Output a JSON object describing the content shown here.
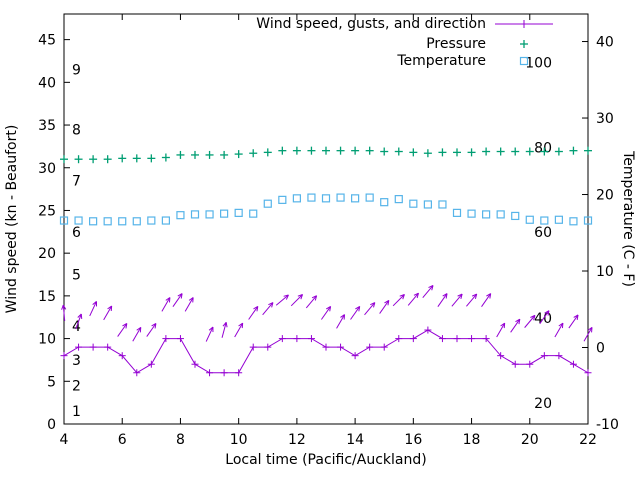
{
  "page": {
    "background": "#ffffff"
  },
  "chart_data": {
    "type": "line",
    "title": "",
    "xlabel": "Local time (Pacific/Auckland)",
    "ylabel_left": "Wind speed (kn - Beaufort)",
    "ylabel_right": "Temperature (C - F)",
    "grid": false,
    "xlim": [
      4,
      22
    ],
    "ylim_left": [
      0,
      48
    ],
    "ylim_right": [
      -10,
      43.6
    ],
    "x_ticks": [
      4,
      6,
      8,
      10,
      12,
      14,
      16,
      18,
      20,
      22
    ],
    "y_ticks_left": [
      0,
      5,
      10,
      15,
      20,
      25,
      30,
      35,
      40,
      45
    ],
    "y_ticks_right": [
      -10,
      0,
      10,
      20,
      30,
      40
    ],
    "beaufort_scale_labels": [
      {
        "label": "1",
        "kn": 1.5
      },
      {
        "label": "2",
        "kn": 4.5
      },
      {
        "label": "3",
        "kn": 7.5
      },
      {
        "label": "4",
        "kn": 11.5
      },
      {
        "label": "5",
        "kn": 17.5
      },
      {
        "label": "6",
        "kn": 22.5
      },
      {
        "label": "7",
        "kn": 28.5
      },
      {
        "label": "8",
        "kn": 34.5
      },
      {
        "label": "9",
        "kn": 41.5
      }
    ],
    "fahrenheit_scale_labels": [
      {
        "label": "20",
        "c": -6.7
      },
      {
        "label": "40",
        "c": 4.4
      },
      {
        "label": "60",
        "c": 15.6
      },
      {
        "label": "80",
        "c": 26.7
      },
      {
        "label": "100",
        "c": 37.8
      }
    ],
    "legend": {
      "position": "top-right",
      "entries": [
        {
          "label": "Wind speed, gusts, and direction",
          "marker": "line-plus",
          "color": "#9400d3"
        },
        {
          "label": "Pressure",
          "marker": "plus",
          "color": "#009e73"
        },
        {
          "label": "Temperature",
          "marker": "open-square",
          "color": "#56b4e9"
        }
      ]
    },
    "x": [
      4,
      4.5,
      5,
      5.5,
      6,
      6.5,
      7,
      7.5,
      8,
      8.5,
      9,
      9.5,
      10,
      10.5,
      11,
      11.5,
      12,
      12.5,
      13,
      13.5,
      14,
      14.5,
      15,
      15.5,
      16,
      16.5,
      17,
      17.5,
      18,
      18.5,
      19,
      19.5,
      20,
      20.5,
      21,
      21.5,
      22
    ],
    "series": {
      "wind_speed_kn": {
        "axis": "left",
        "color": "#9400d3",
        "style": "linespoints-plus",
        "values": [
          8,
          9,
          9,
          9,
          8,
          6,
          7,
          10,
          10,
          7,
          6,
          6,
          6,
          9,
          9,
          10,
          10,
          10,
          9,
          9,
          8,
          9,
          9,
          10,
          10,
          11,
          10,
          10,
          10,
          10,
          8,
          7,
          7,
          8,
          8,
          7,
          6
        ]
      },
      "pressure_plotted_left_axis": {
        "axis": "left",
        "color": "#009e73",
        "style": "points-plus",
        "values": [
          31,
          31,
          31,
          31,
          31.1,
          31.1,
          31.1,
          31.2,
          31.5,
          31.5,
          31.5,
          31.5,
          31.6,
          31.7,
          31.8,
          32,
          32,
          32,
          32,
          32,
          32,
          32,
          31.9,
          31.9,
          31.8,
          31.7,
          31.8,
          31.8,
          31.8,
          31.9,
          31.9,
          31.9,
          31.9,
          31.9,
          31.9,
          32,
          32
        ]
      },
      "temperature_c": {
        "axis": "right",
        "color": "#56b4e9",
        "style": "points-square",
        "values": [
          16.6,
          16.6,
          16.5,
          16.5,
          16.5,
          16.5,
          16.6,
          16.6,
          17.3,
          17.4,
          17.4,
          17.5,
          17.6,
          17.5,
          18.8,
          19.3,
          19.5,
          19.6,
          19.5,
          19.6,
          19.5,
          19.6,
          19.0,
          19.4,
          18.8,
          18.7,
          18.7,
          17.6,
          17.5,
          17.4,
          17.4,
          17.2,
          16.7,
          16.6,
          16.7,
          16.5,
          16.6
        ]
      },
      "gust_direction_arrows": {
        "axis": "left",
        "color": "#9400d3",
        "style": "vector",
        "points": [
          [
            4.0,
            13,
            95
          ],
          [
            4.5,
            12,
            70
          ],
          [
            5.0,
            13.5,
            65
          ],
          [
            5.5,
            13,
            60
          ],
          [
            6.0,
            11,
            55
          ],
          [
            6.5,
            10.5,
            60
          ],
          [
            7.0,
            11,
            55
          ],
          [
            7.5,
            14,
            60
          ],
          [
            7.9,
            14.5,
            55
          ],
          [
            8.3,
            14,
            60
          ],
          [
            9.0,
            10.5,
            65
          ],
          [
            9.5,
            11,
            75
          ],
          [
            10.0,
            11,
            60
          ],
          [
            10.5,
            13,
            55
          ],
          [
            11.0,
            13.5,
            50
          ],
          [
            11.5,
            14.5,
            40
          ],
          [
            12.0,
            14.5,
            45
          ],
          [
            12.5,
            14.3,
            50
          ],
          [
            13.0,
            13,
            55
          ],
          [
            13.5,
            12,
            60
          ],
          [
            14.0,
            13,
            55
          ],
          [
            14.5,
            13.5,
            50
          ],
          [
            15.0,
            13.7,
            55
          ],
          [
            15.5,
            14.5,
            45
          ],
          [
            16.0,
            14.6,
            50
          ],
          [
            16.5,
            15.5,
            50
          ],
          [
            17.0,
            14.5,
            55
          ],
          [
            17.5,
            14.5,
            50
          ],
          [
            18.0,
            14.5,
            50
          ],
          [
            18.5,
            14.5,
            55
          ],
          [
            19.0,
            11,
            60
          ],
          [
            19.5,
            11.5,
            55
          ],
          [
            20.0,
            12,
            50
          ],
          [
            20.5,
            12.5,
            55
          ],
          [
            21.0,
            11,
            60
          ],
          [
            21.5,
            12,
            55
          ],
          [
            22.0,
            10.5,
            60
          ]
        ]
      }
    }
  }
}
